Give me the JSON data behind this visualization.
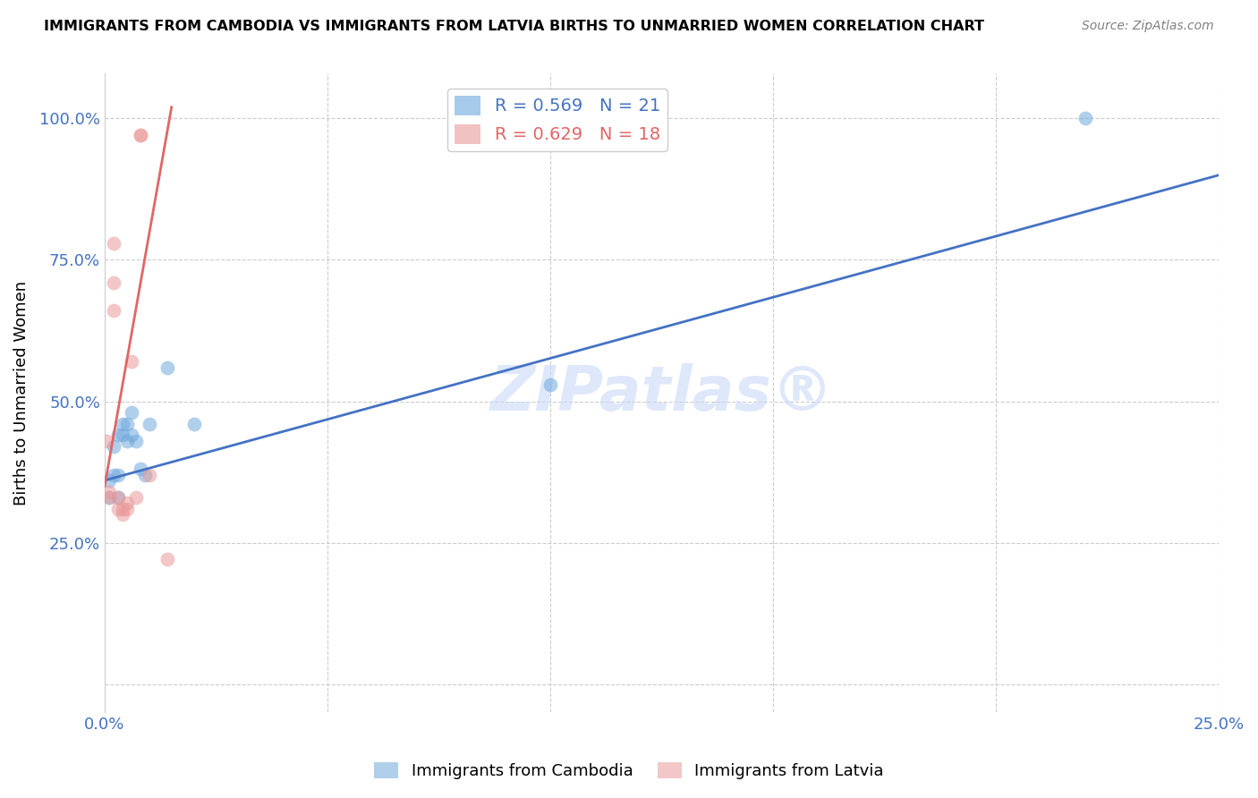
{
  "title": "IMMIGRANTS FROM CAMBODIA VS IMMIGRANTS FROM LATVIA BIRTHS TO UNMARRIED WOMEN CORRELATION CHART",
  "source": "Source: ZipAtlas.com",
  "ylabel": "Births to Unmarried Women",
  "xlim": [
    0,
    0.25
  ],
  "ylim": [
    -0.05,
    1.08
  ],
  "legend1_label": "R = 0.569   N = 21",
  "legend2_label": "R = 0.629   N = 18",
  "watermark": "ZIPatlas®",
  "blue_color": "#6fa8dc",
  "pink_color": "#ea9999",
  "blue_line_color": "#4472c4",
  "pink_line_color": "#e06666",
  "cambodia_x": [
    0.001,
    0.001,
    0.002,
    0.002,
    0.003,
    0.003,
    0.003,
    0.004,
    0.004,
    0.005,
    0.005,
    0.006,
    0.006,
    0.007,
    0.008,
    0.009,
    0.01,
    0.014,
    0.02,
    0.1,
    0.22
  ],
  "cambodia_y": [
    0.33,
    0.36,
    0.37,
    0.42,
    0.33,
    0.37,
    0.44,
    0.44,
    0.46,
    0.43,
    0.46,
    0.44,
    0.48,
    0.43,
    0.38,
    0.37,
    0.46,
    0.56,
    0.46,
    0.53,
    1.0
  ],
  "latvia_x": [
    0.0005,
    0.001,
    0.001,
    0.002,
    0.002,
    0.002,
    0.003,
    0.003,
    0.004,
    0.004,
    0.005,
    0.005,
    0.006,
    0.007,
    0.008,
    0.008,
    0.01,
    0.014
  ],
  "latvia_y": [
    0.43,
    0.33,
    0.34,
    0.66,
    0.71,
    0.78,
    0.31,
    0.33,
    0.3,
    0.31,
    0.31,
    0.32,
    0.57,
    0.33,
    0.97,
    0.97,
    0.37,
    0.22
  ],
  "blue_line_x": [
    0.0,
    0.25
  ],
  "blue_line_y": [
    0.36,
    0.9
  ],
  "pink_line_x": [
    0.0,
    0.015
  ],
  "pink_line_y": [
    0.35,
    1.02
  ]
}
